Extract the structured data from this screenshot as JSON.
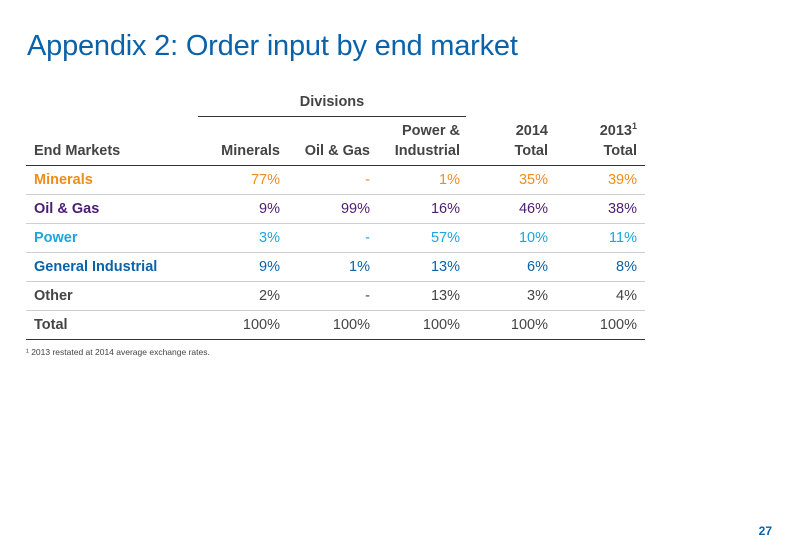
{
  "title": "Appendix 2: Order input by end market",
  "divisions_label": "Divisions",
  "header": {
    "end_markets": "End Markets",
    "minerals": "Minerals",
    "oil_gas": "Oil & Gas",
    "power_line1": "Power &",
    "power_line2": "Industrial",
    "y2014_line1": "2014",
    "y2014_line2": "Total",
    "y2013_line1": "2013",
    "y2013_sup": "1",
    "y2013_line2": "Total"
  },
  "rows": [
    {
      "label": "Minerals",
      "minerals": "77%",
      "oil_gas": "-",
      "power_industrial": "1%",
      "total_2014": "35%",
      "total_2013": "39%"
    },
    {
      "label": "Oil & Gas",
      "minerals": "9%",
      "oil_gas": "99%",
      "power_industrial": "16%",
      "total_2014": "46%",
      "total_2013": "38%"
    },
    {
      "label": "Power",
      "minerals": "3%",
      "oil_gas": "-",
      "power_industrial": "57%",
      "total_2014": "10%",
      "total_2013": "11%"
    },
    {
      "label": "General Industrial",
      "minerals": "9%",
      "oil_gas": "1%",
      "power_industrial": "13%",
      "total_2014": "6%",
      "total_2013": "8%"
    },
    {
      "label": "Other",
      "minerals": "2%",
      "oil_gas": "-",
      "power_industrial": "13%",
      "total_2014": "3%",
      "total_2013": "4%"
    },
    {
      "label": "Total",
      "minerals": "100%",
      "oil_gas": "100%",
      "power_industrial": "100%",
      "total_2014": "100%",
      "total_2013": "100%"
    }
  ],
  "footnote": "¹ 2013 restated at 2014 average exchange rates.",
  "page_number": "27",
  "colors": {
    "title_blue": "#0a62a9",
    "minerals_orange": "#ef8d1a",
    "oil_gas_purple": "#4c1d74",
    "power_cyan": "#1ca5dc",
    "general_industrial_blue": "#0a62a9",
    "dark_text": "#444444"
  }
}
